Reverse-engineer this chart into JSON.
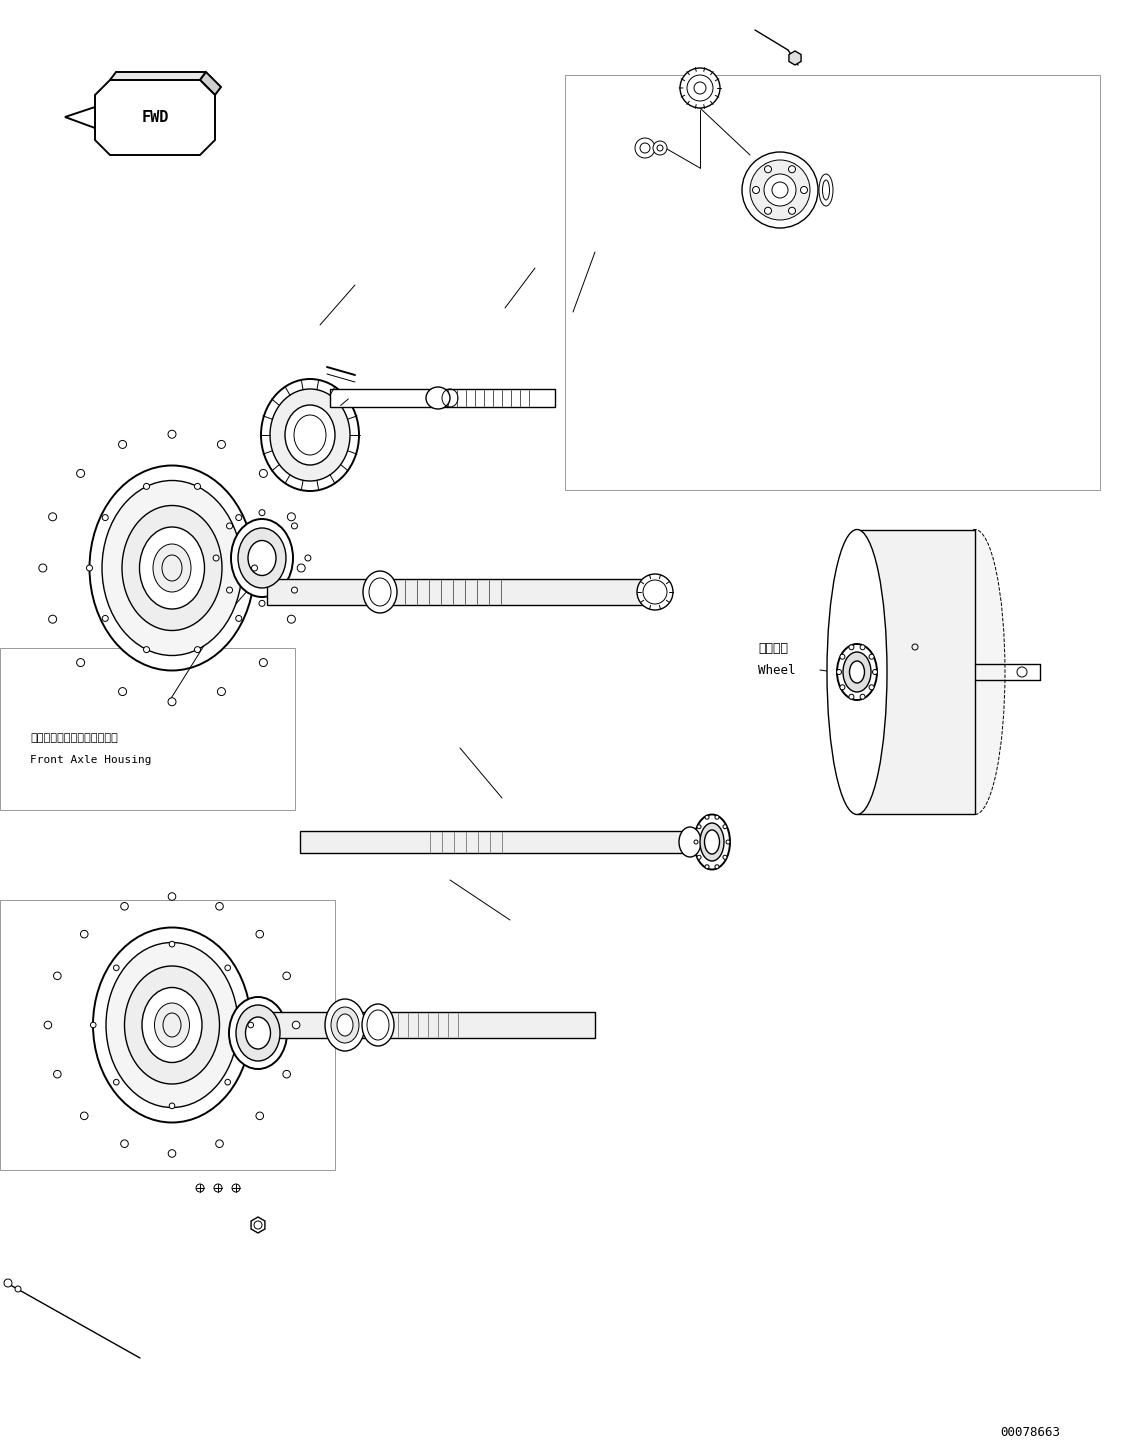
{
  "bg_color": "#ffffff",
  "line_color": "#000000",
  "title": "",
  "part_number": "00078663",
  "labels": {
    "fwd": "FWD",
    "front_axle_jp": "フロントアクスルハウジング",
    "front_axle_en": "Front Axle Housing",
    "wheel_jp": "ホイール",
    "wheel_en": "Wheel"
  },
  "figsize": [
    11.41,
    14.56
  ],
  "dpi": 100
}
